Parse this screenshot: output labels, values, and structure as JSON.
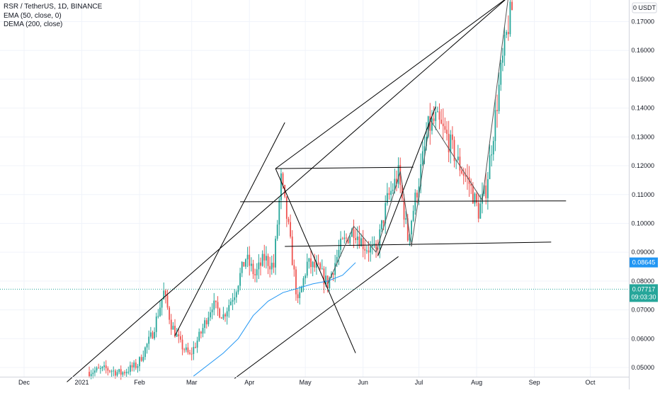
{
  "header": {
    "symbol_line": "RSR / TetherUS, 1D, BINANCE",
    "indicator1": "EMA (50, close, 0)",
    "indicator2": "DEMA (200, close)"
  },
  "y_axis": {
    "unit": "0 USDT",
    "ticks": [
      "0.05000",
      "0.06000",
      "0.07000",
      "0.08000",
      "0.09000",
      "0.10000",
      "0.11000",
      "0.12000",
      "0.13000",
      "0.14000",
      "0.15000",
      "0.16000",
      "0.17000"
    ]
  },
  "price_tags": {
    "ema": "0.08645",
    "last": "0.07717",
    "countdown": "09:03:30"
  },
  "colors": {
    "up": "#26a69a",
    "down": "#ef5350",
    "ema": "#2196f3",
    "last_price": "#26a69a",
    "drawing": "#000000"
  },
  "chart_data": {
    "type": "candlestick",
    "title": "RSR / TetherUS, 1D, BINANCE",
    "x_ticks": [
      "Dec",
      "2021",
      "Feb",
      "Mar",
      "Apr",
      "May",
      "Jun",
      "Jul",
      "Aug",
      "Sep",
      "Oct"
    ],
    "ylim": [
      0.0465,
      0.1805
    ],
    "last_price": 0.07717,
    "ema_last": 0.08645,
    "series": [
      {
        "name": "EMA (50, close, 0)",
        "points": [
          {
            "x": "2021-03-02",
            "y": 0.047
          },
          {
            "x": "2021-03-10",
            "y": 0.051
          },
          {
            "x": "2021-03-18",
            "y": 0.055
          },
          {
            "x": "2021-03-26",
            "y": 0.06
          },
          {
            "x": "2021-04-03",
            "y": 0.068
          },
          {
            "x": "2021-04-11",
            "y": 0.073
          },
          {
            "x": "2021-04-19",
            "y": 0.076
          },
          {
            "x": "2021-04-27",
            "y": 0.0775
          },
          {
            "x": "2021-05-05",
            "y": 0.079
          },
          {
            "x": "2021-05-13",
            "y": 0.08
          },
          {
            "x": "2021-05-21",
            "y": 0.082
          },
          {
            "x": "2021-05-28",
            "y": 0.0864
          }
        ]
      }
    ],
    "ohlc_path": [
      {
        "x": "2021-01-05",
        "y": 0.0485
      },
      {
        "x": "2021-01-14",
        "y": 0.0495
      },
      {
        "x": "2021-01-22",
        "y": 0.048
      },
      {
        "x": "2021-01-31",
        "y": 0.051
      },
      {
        "x": "2021-02-08",
        "y": 0.062
      },
      {
        "x": "2021-02-14",
        "y": 0.076
      },
      {
        "x": "2021-02-18",
        "y": 0.065
      },
      {
        "x": "2021-02-23",
        "y": 0.058
      },
      {
        "x": "2021-02-28",
        "y": 0.054
      },
      {
        "x": "2021-03-06",
        "y": 0.062
      },
      {
        "x": "2021-03-12",
        "y": 0.072
      },
      {
        "x": "2021-03-18",
        "y": 0.068
      },
      {
        "x": "2021-03-24",
        "y": 0.076
      },
      {
        "x": "2021-03-30",
        "y": 0.088
      },
      {
        "x": "2021-04-04",
        "y": 0.082
      },
      {
        "x": "2021-04-09",
        "y": 0.088
      },
      {
        "x": "2021-04-14",
        "y": 0.085
      },
      {
        "x": "2021-04-18",
        "y": 0.115
      },
      {
        "x": "2021-04-22",
        "y": 0.098
      },
      {
        "x": "2021-04-27",
        "y": 0.072
      },
      {
        "x": "2021-05-02",
        "y": 0.086
      },
      {
        "x": "2021-05-08",
        "y": 0.084
      },
      {
        "x": "2021-05-13",
        "y": 0.079
      },
      {
        "x": "2021-05-20",
        "y": 0.092
      },
      {
        "x": "2021-05-27",
        "y": 0.098
      },
      {
        "x": "2021-06-02",
        "y": 0.092
      },
      {
        "x": "2021-06-08",
        "y": 0.09
      },
      {
        "x": "2021-06-14",
        "y": 0.108
      },
      {
        "x": "2021-06-20",
        "y": 0.117
      },
      {
        "x": "2021-06-25",
        "y": 0.095
      },
      {
        "x": "2021-07-01",
        "y": 0.115
      },
      {
        "x": "2021-07-06",
        "y": 0.133
      },
      {
        "x": "2021-07-10",
        "y": 0.136
      },
      {
        "x": "2021-07-16",
        "y": 0.13
      },
      {
        "x": "2021-07-22",
        "y": 0.121
      },
      {
        "x": "2021-07-28",
        "y": 0.114
      },
      {
        "x": "2021-08-02",
        "y": 0.104
      },
      {
        "x": "2021-08-06",
        "y": 0.112
      },
      {
        "x": "2021-08-10",
        "y": 0.132
      },
      {
        "x": "2021-08-14",
        "y": 0.152
      },
      {
        "x": "2021-08-18",
        "y": 0.169
      },
      {
        "x": "2021-08-20",
        "y": 0.174
      }
    ],
    "trend_lines": [
      {
        "x1": "2020-12-24",
        "y1": 0.045,
        "x2": "2021-08-18",
        "y2": 0.1785
      },
      {
        "x1": "2021-04-15",
        "y1": 0.119,
        "x2": "2021-08-18",
        "y2": 0.1785
      },
      {
        "x1": "2021-02-20",
        "y1": 0.061,
        "x2": "2021-04-20",
        "y2": 0.135
      },
      {
        "x1": "2021-04-15",
        "y1": 0.119,
        "x2": "2021-05-28",
        "y2": 0.055
      },
      {
        "x1": "2021-04-15",
        "y1": 0.119,
        "x2": "2021-06-28",
        "y2": 0.1195
      },
      {
        "x1": "2021-03-27",
        "y1": 0.1075,
        "x2": "2021-09-18",
        "y2": 0.1078
      },
      {
        "x1": "2021-04-20",
        "y1": 0.092,
        "x2": "2021-09-10",
        "y2": 0.0935
      },
      {
        "x1": "2021-03-24",
        "y1": 0.0462,
        "x2": "2021-06-20",
        "y2": 0.0885
      },
      {
        "x1": "2021-06-09",
        "y1": 0.0888,
        "x2": "2021-07-10",
        "y2": 0.1405
      }
    ],
    "zigzag": [
      {
        "x": "2021-05-13",
        "y": 0.079
      },
      {
        "x": "2021-05-27",
        "y": 0.099
      },
      {
        "x": "2021-06-08",
        "y": 0.09
      },
      {
        "x": "2021-06-21",
        "y": 0.118
      },
      {
        "x": "2021-06-27",
        "y": 0.092
      },
      {
        "x": "2021-07-07",
        "y": 0.136
      },
      {
        "x": "2021-08-04",
        "y": 0.108
      },
      {
        "x": "2021-08-18",
        "y": 0.1785
      }
    ]
  }
}
